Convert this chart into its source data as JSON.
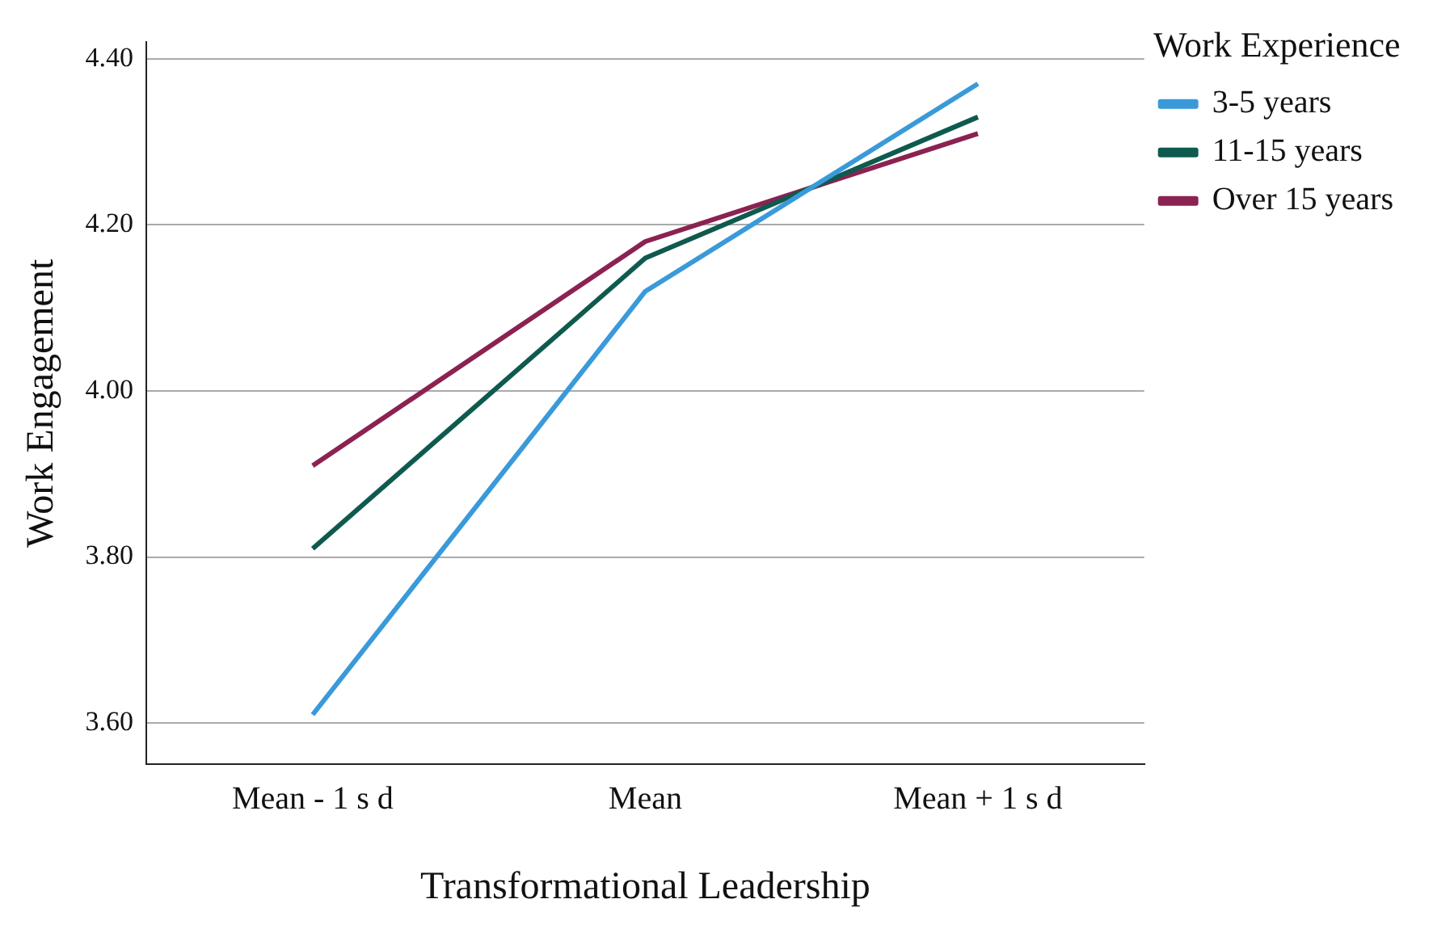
{
  "chart_data": {
    "type": "line",
    "xlabel": "Transformational Leadership",
    "ylabel": "Work Engagement",
    "legend_title": "Work Experience",
    "categories": [
      "Mean - 1 s d",
      "Mean",
      "Mean + 1 s d"
    ],
    "series": [
      {
        "name": "3-5 years",
        "color": "#3a9ad9",
        "values": [
          3.61,
          4.12,
          4.37
        ]
      },
      {
        "name": "11-15 years",
        "color": "#0f5a4e",
        "values": [
          3.81,
          4.16,
          4.33
        ]
      },
      {
        "name": "Over 15 years",
        "color": "#8b2252",
        "values": [
          3.91,
          4.18,
          4.31
        ]
      }
    ],
    "ylim": [
      3.55,
      4.42
    ],
    "yticks": [
      {
        "value": 3.6,
        "label": "3.60"
      },
      {
        "value": 3.8,
        "label": "3.80"
      },
      {
        "value": 4.0,
        "label": "4.00"
      },
      {
        "value": 4.2,
        "label": "4.20"
      },
      {
        "value": 4.4,
        "label": "4.40"
      }
    ],
    "grid": "y",
    "legend": "top right",
    "marker": "none",
    "line_style": "solid"
  }
}
